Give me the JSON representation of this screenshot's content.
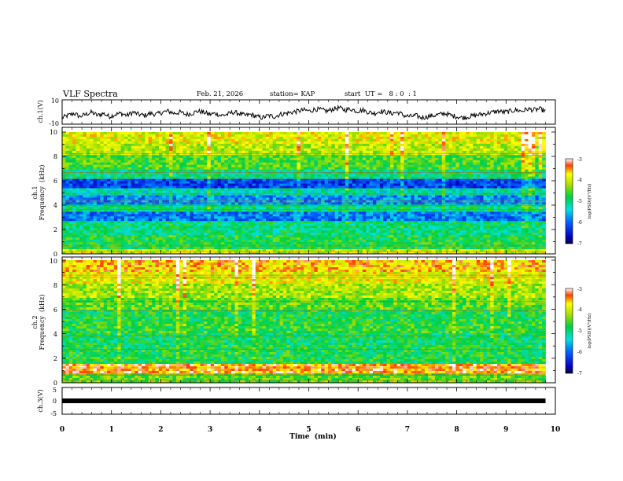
{
  "header": {
    "title": "VLF Spectra",
    "date": "Feb. 21, 2026",
    "station": "station= KAP",
    "start_time": "start  UT =   8 : 0  : 1"
  },
  "colors": {
    "ink": "#000000",
    "background": "#ffffff"
  },
  "chart_data": [
    {
      "type": "line",
      "name": "ch1-voltage",
      "ylabel": "ch.1(V)",
      "ylim": [
        -10,
        10
      ],
      "y_ticklabels": [
        "10",
        "-10"
      ],
      "x_range": [
        0,
        10
      ],
      "x_extent": [
        0,
        9.8
      ],
      "description_values": [
        -3,
        -1,
        1,
        -2,
        0,
        2,
        -1,
        1,
        -2,
        0,
        1,
        -1,
        2,
        0,
        -1,
        1,
        0,
        2,
        3,
        1,
        2,
        0,
        1,
        3,
        2,
        0,
        1,
        -1,
        0,
        2,
        1,
        -1,
        0,
        -2,
        -3,
        -1,
        -2,
        0,
        1,
        2,
        3,
        4,
        3,
        5,
        4,
        3,
        5,
        6,
        4,
        5,
        3,
        4,
        2,
        1,
        3,
        2,
        1,
        2,
        -1,
        -2,
        -1,
        -3,
        -2,
        -1,
        0,
        1,
        -1,
        -2,
        -3,
        -2,
        -1,
        0,
        1,
        2,
        3,
        2,
        3,
        4,
        3,
        5,
        4,
        5,
        3
      ]
    },
    {
      "type": "heatmap",
      "name": "ch1-spectrogram",
      "ylabel_line1": "ch.1",
      "ylabel_line2": "Frequency  (kHz)",
      "ylim": [
        0,
        10
      ],
      "y_ticklabels": [
        "0",
        "2",
        "4",
        "6",
        "8",
        "10"
      ],
      "x_range": [
        0,
        10
      ],
      "x_extent": [
        0,
        9.8
      ],
      "colorbar_label": "log(PSD)(V²/Hz)",
      "colorbar_range": [
        -7,
        -3
      ],
      "colorbar_ticklabels": [
        "-3",
        "-4",
        "-5",
        "-6",
        "-7"
      ],
      "band_profile_khz": [
        [
          0.0,
          0.4,
          -4.0
        ],
        [
          0.4,
          1.6,
          -4.8
        ],
        [
          1.6,
          2.6,
          -5.0
        ],
        [
          2.6,
          3.4,
          -5.9
        ],
        [
          3.4,
          4.0,
          -5.0
        ],
        [
          4.0,
          4.8,
          -5.8
        ],
        [
          4.8,
          5.4,
          -5.2
        ],
        [
          5.4,
          6.2,
          -6.2
        ],
        [
          6.2,
          7.0,
          -5.0
        ],
        [
          7.0,
          8.0,
          -4.6
        ],
        [
          8.0,
          9.0,
          -4.1
        ],
        [
          9.0,
          10.0,
          -3.9
        ]
      ]
    },
    {
      "type": "heatmap",
      "name": "ch2-spectrogram",
      "ylabel_line1": "ch.2",
      "ylabel_line2": "Frequency  (kHz)",
      "ylim": [
        0,
        10
      ],
      "y_ticklabels": [
        "0",
        "2",
        "4",
        "6",
        "8",
        "10"
      ],
      "x_range": [
        0,
        10
      ],
      "x_extent": [
        0,
        9.8
      ],
      "colorbar_label": "log(PSD)(V²/Hz)",
      "colorbar_range": [
        -7,
        -3
      ],
      "colorbar_ticklabels": [
        "-3",
        "-4",
        "-5",
        "-6",
        "-7"
      ],
      "band_profile_khz": [
        [
          0.0,
          0.8,
          -4.5
        ],
        [
          0.8,
          1.6,
          -3.4
        ],
        [
          1.6,
          3.0,
          -4.8
        ],
        [
          3.0,
          4.0,
          -4.9
        ],
        [
          4.0,
          5.0,
          -4.7
        ],
        [
          5.0,
          6.0,
          -4.8
        ],
        [
          6.0,
          7.0,
          -4.5
        ],
        [
          7.0,
          8.0,
          -4.2
        ],
        [
          8.0,
          9.0,
          -3.9
        ],
        [
          9.0,
          10.0,
          -3.6
        ]
      ]
    },
    {
      "type": "line",
      "name": "ch3-voltage",
      "ylabel": "ch.3(V)",
      "ylim": [
        -5,
        5
      ],
      "y_ticklabels": [
        "5",
        "0",
        "-5"
      ],
      "x_range": [
        0,
        10
      ],
      "x_extent": [
        0,
        9.8
      ],
      "constant_value": 0,
      "xlabel": "Time  (min)",
      "x_ticklabels": [
        "0",
        "1",
        "2",
        "3",
        "4",
        "5",
        "6",
        "7",
        "8",
        "9",
        "10"
      ]
    }
  ]
}
